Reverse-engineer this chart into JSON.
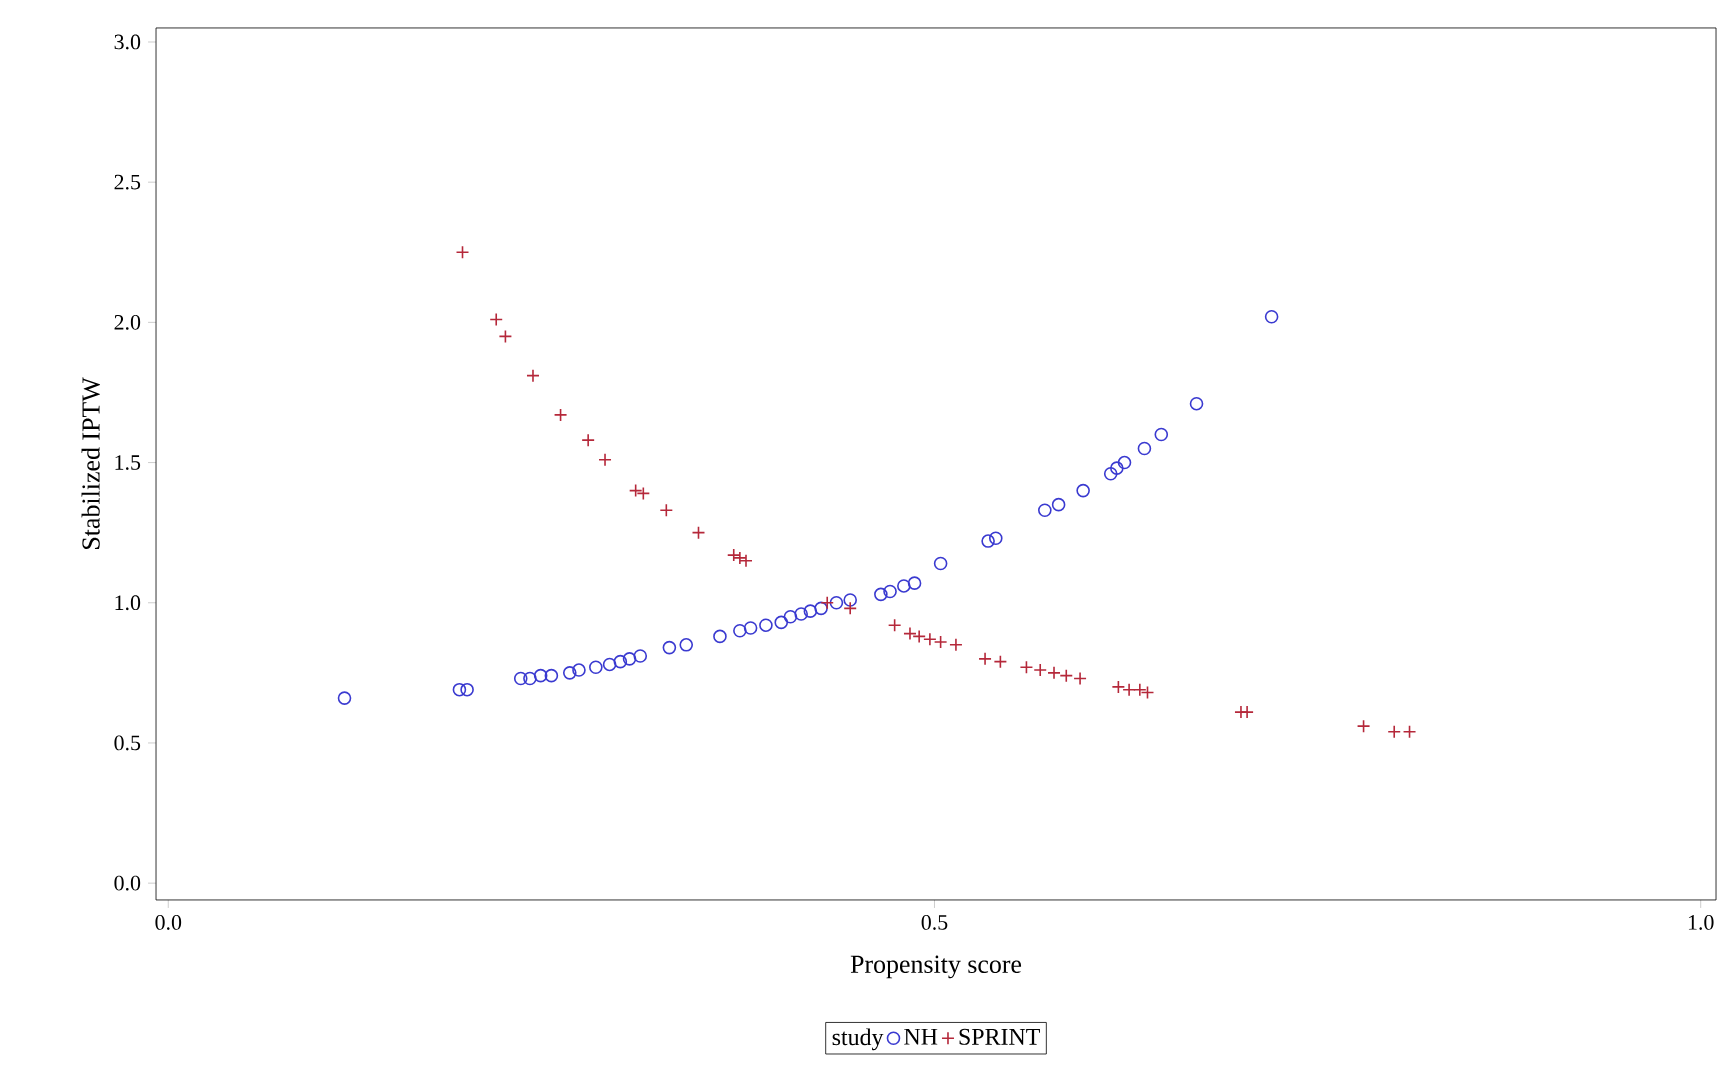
{
  "chart_data": {
    "type": "scatter",
    "xlabel": "Propensity score",
    "ylabel": "Stabilized IPTW",
    "legend_title": "study",
    "legend": "bottom",
    "grid": false,
    "xlim": [
      -0.008,
      1.01
    ],
    "ylim": [
      -0.06,
      3.05
    ],
    "xticks": [
      {
        "value": 0,
        "label": "0.0"
      },
      0.5,
      {
        "value": 1,
        "label": "1.0"
      }
    ],
    "yticks": [
      {
        "value": 0,
        "label": "0.0"
      },
      0.5,
      {
        "value": 1,
        "label": "1.0"
      },
      1.5,
      {
        "value": 2,
        "label": "2.0"
      },
      2.5,
      {
        "value": 3,
        "label": "3.0"
      }
    ],
    "series": [
      {
        "name": "NH",
        "color": "#3a3ad0",
        "marker": "circle",
        "x": [
          0.115,
          0.19,
          0.195,
          0.23,
          0.236,
          0.243,
          0.25,
          0.262,
          0.268,
          0.279,
          0.288,
          0.295,
          0.301,
          0.308,
          0.327,
          0.338,
          0.36,
          0.373,
          0.38,
          0.39,
          0.4,
          0.406,
          0.413,
          0.419,
          0.426,
          0.436,
          0.445,
          0.465,
          0.471,
          0.48,
          0.487,
          0.504,
          0.535,
          0.54,
          0.572,
          0.581,
          0.597,
          0.615,
          0.619,
          0.624,
          0.637,
          0.648,
          0.671,
          0.72
        ],
        "values": [
          0.66,
          0.69,
          0.69,
          0.73,
          0.73,
          0.74,
          0.74,
          0.75,
          0.76,
          0.77,
          0.78,
          0.79,
          0.8,
          0.81,
          0.84,
          0.85,
          0.88,
          0.9,
          0.91,
          0.92,
          0.93,
          0.95,
          0.96,
          0.97,
          0.98,
          1.0,
          1.01,
          1.03,
          1.04,
          1.06,
          1.07,
          1.14,
          1.22,
          1.23,
          1.33,
          1.35,
          1.4,
          1.46,
          1.48,
          1.5,
          1.55,
          1.6,
          1.71,
          2.02
        ]
      },
      {
        "name": "SPRINT",
        "color": "#b5283a",
        "marker": "cross",
        "x": [
          0.192,
          0.214,
          0.22,
          0.238,
          0.256,
          0.274,
          0.285,
          0.305,
          0.31,
          0.325,
          0.346,
          0.369,
          0.373,
          0.377,
          0.43,
          0.445,
          0.474,
          0.484,
          0.49,
          0.497,
          0.504,
          0.514,
          0.533,
          0.543,
          0.56,
          0.569,
          0.578,
          0.586,
          0.595,
          0.62,
          0.627,
          0.634,
          0.639,
          0.7,
          0.704,
          0.78,
          0.8,
          0.81
        ],
        "values": [
          2.25,
          2.01,
          1.95,
          1.81,
          1.67,
          1.58,
          1.51,
          1.4,
          1.39,
          1.33,
          1.25,
          1.17,
          1.16,
          1.15,
          1.0,
          0.98,
          0.92,
          0.89,
          0.88,
          0.87,
          0.86,
          0.85,
          0.8,
          0.79,
          0.77,
          0.76,
          0.75,
          0.74,
          0.73,
          0.7,
          0.69,
          0.69,
          0.68,
          0.61,
          0.61,
          0.56,
          0.54,
          0.54
        ]
      }
    ]
  }
}
